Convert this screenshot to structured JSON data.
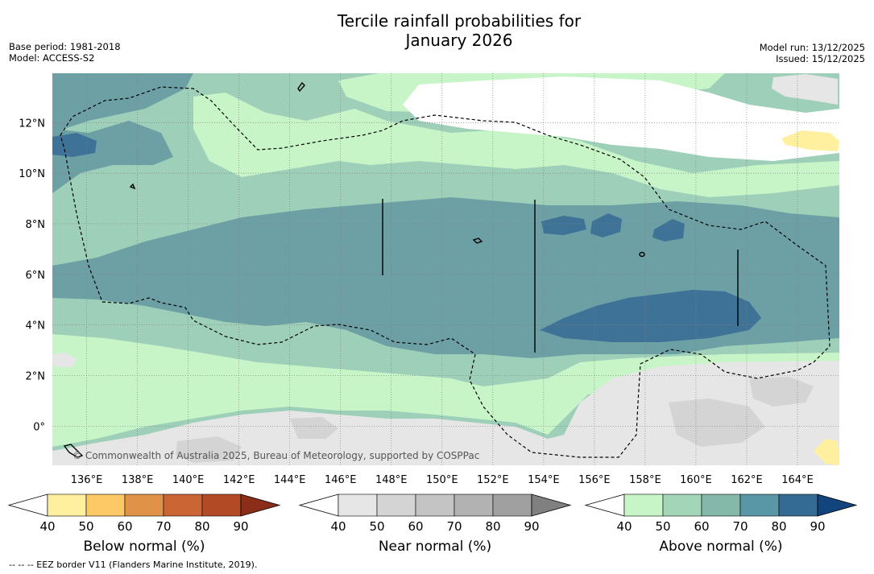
{
  "title_line1": "Tercile rainfall probabilities for",
  "title_line2": "January 2026",
  "base_period": "Base period: 1981-2018",
  "model": "Model: ACCESS-S2",
  "model_run": "Model run: 13/12/2025",
  "issued": "Issued: 15/12/2025",
  "copyright": "© Commonwealth of Australia 2025, Bureau of Meteorology, supported by COSPPac",
  "footer_note": "--  --  -- EEZ border V11 (Flanders Marine Institute, 2019).",
  "lat_labels": [
    "12°N",
    "10°N",
    "8°N",
    "6°N",
    "4°N",
    "2°N",
    "0°"
  ],
  "lon_labels": [
    "136°E",
    "138°E",
    "140°E",
    "142°E",
    "144°E",
    "146°E",
    "148°E",
    "150°E",
    "152°E",
    "154°E",
    "156°E",
    "158°E",
    "160°E",
    "162°E",
    "164°E"
  ],
  "colorbars": [
    {
      "name": "below",
      "label": "Below normal (%)",
      "ticks": [
        "40",
        "50",
        "60",
        "70",
        "80",
        "90"
      ],
      "colors": [
        "#ffffff",
        "#fff0a0",
        "#fdc966",
        "#e09348",
        "#cc6534",
        "#b34a26",
        "#8c2d19"
      ]
    },
    {
      "name": "near",
      "label": "Near normal (%)",
      "ticks": [
        "40",
        "50",
        "60",
        "70",
        "80",
        "90"
      ],
      "colors": [
        "#ffffff",
        "#e6e6e6",
        "#d4d4d4",
        "#c4c4c4",
        "#b2b2b2",
        "#a0a0a0",
        "#808080"
      ]
    },
    {
      "name": "above",
      "label": "Above normal (%)",
      "ticks": [
        "40",
        "50",
        "60",
        "70",
        "80",
        "90"
      ],
      "colors": [
        "#ffffff",
        "#c7f5c7",
        "#a3d6b8",
        "#84b8a8",
        "#5a97a6",
        "#336b95",
        "#12457e"
      ]
    }
  ],
  "colors": {
    "above_50": "#c7f5c7",
    "above_60": "#9ecfb9",
    "above_70": "#6ca0a5",
    "above_80": "#3e7296",
    "near_50": "#e6e6e6",
    "near_60": "#d4d4d4",
    "below_50": "#fff0a0"
  }
}
